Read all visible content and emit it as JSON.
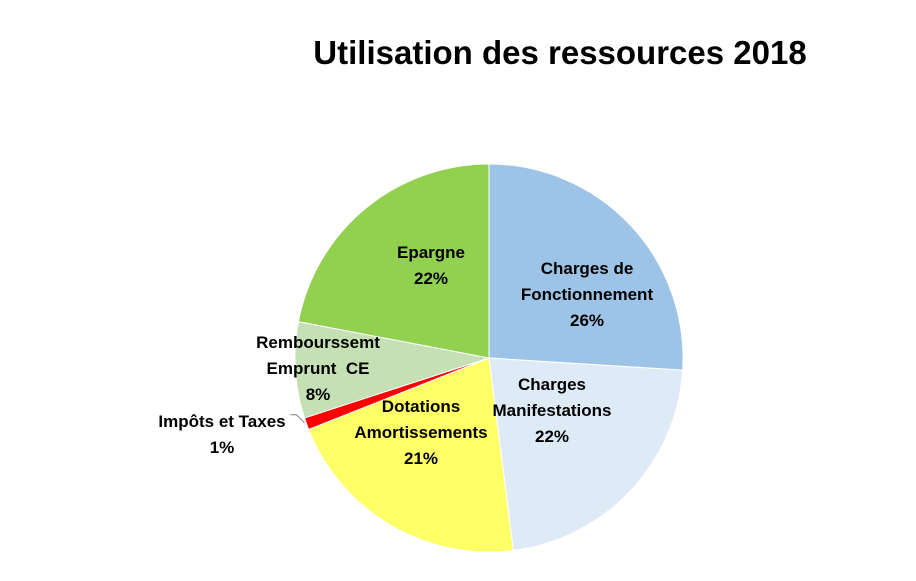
{
  "chart_data": {
    "type": "pie",
    "title": "Utilisation des ressources 2018",
    "legend": "none",
    "slices": [
      {
        "label_lines": [
          "Charges de",
          "Fonctionnement"
        ],
        "value": 26,
        "value_label": "26%",
        "color": "#9DC3E6"
      },
      {
        "label_lines": [
          "Charges",
          "Manifestations"
        ],
        "value": 22,
        "value_label": "22%",
        "color": "#DEEBF7"
      },
      {
        "label_lines": [
          "Dotations",
          "Amortissements"
        ],
        "value": 21,
        "value_label": "21%",
        "color": "#FFFF66"
      },
      {
        "label_lines": [
          "Impôts et Taxes"
        ],
        "value": 1,
        "value_label": "1%",
        "color": "#FF0000"
      },
      {
        "label_lines": [
          "Rembourssemt",
          "Emprunt  CE"
        ],
        "value": 8,
        "value_label": "8%",
        "color": "#C5E0B4"
      },
      {
        "label_lines": [
          "Epargne"
        ],
        "value": 22,
        "value_label": "22%",
        "color": "#92D050"
      }
    ]
  }
}
